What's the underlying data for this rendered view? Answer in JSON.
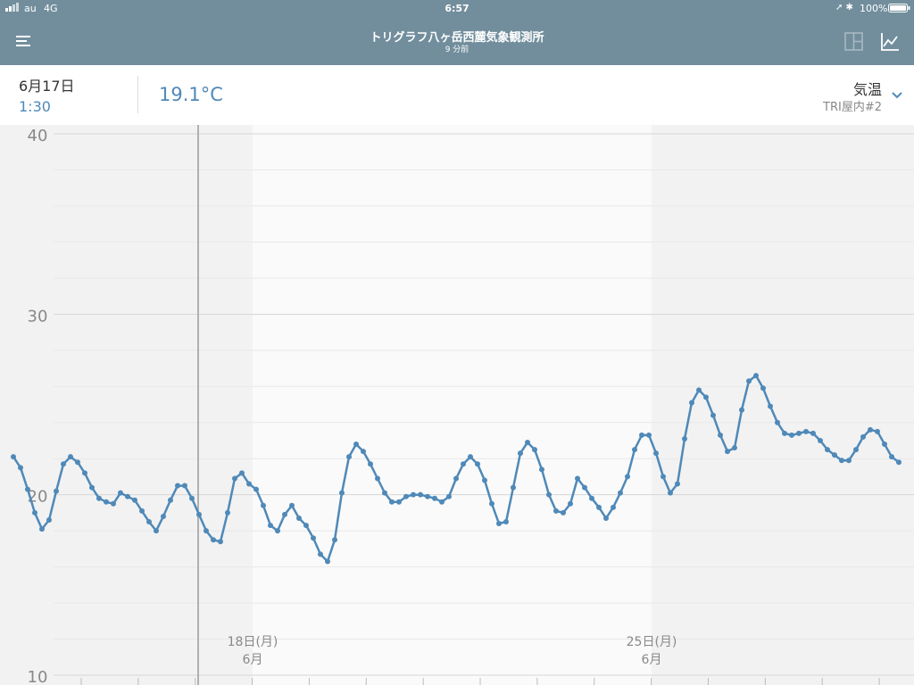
{
  "status_bar": {
    "carrier": "au",
    "network": "4G",
    "time": "6:57",
    "battery": "100%"
  },
  "header": {
    "title": "トリグラフ八ヶ岳西麓気象観測所",
    "updated": "9 分前"
  },
  "info": {
    "date": "6月17日",
    "time": "1:30",
    "reading": "19.1°C",
    "sensor": "TRI屋内#2"
  },
  "chart_data": {
    "type": "line",
    "series": [
      {
        "name": "気温",
        "color": "#4f89b8",
        "values": [
          22.1,
          21.5,
          20.3,
          19.0,
          18.1,
          18.6,
          20.2,
          21.7,
          22.1,
          21.8,
          21.2,
          20.4,
          19.8,
          19.6,
          19.5,
          20.1,
          19.9,
          19.7,
          19.1,
          18.5,
          18.0,
          18.8,
          19.7,
          20.5,
          20.5,
          19.8,
          18.9,
          18.0,
          17.5,
          17.4,
          19.0,
          20.9,
          21.2,
          20.6,
          20.3,
          19.4,
          18.3,
          18.0,
          18.9,
          19.4,
          18.7,
          18.3,
          17.6,
          16.7,
          16.3,
          17.5,
          20.1,
          22.1,
          22.8,
          22.4,
          21.7,
          20.9,
          20.1,
          19.6,
          19.6,
          19.9,
          20.0,
          20.0,
          19.9,
          19.8,
          19.6,
          19.9,
          20.9,
          21.7,
          22.1,
          21.7,
          20.8,
          19.5,
          18.4,
          18.5,
          20.4,
          22.3,
          22.9,
          22.5,
          21.4,
          20.0,
          19.1,
          19.0,
          19.5,
          20.9,
          20.4,
          19.8,
          19.3,
          18.7,
          19.3,
          20.1,
          21.0,
          22.5,
          23.3,
          23.3,
          22.3,
          21.0,
          20.1,
          20.6,
          23.1,
          25.1,
          25.8,
          25.4,
          24.4,
          23.3,
          22.4,
          22.6,
          24.7,
          26.3,
          26.6,
          25.9,
          24.9,
          24.0,
          23.4,
          23.3,
          23.4,
          23.5,
          23.4,
          23.0,
          22.5,
          22.2,
          21.9,
          21.9,
          22.5,
          23.2,
          23.6,
          23.5,
          22.8,
          22.1,
          21.8
        ]
      }
    ],
    "ylim": [
      10,
      40
    ],
    "yticks": [
      10,
      20,
      30,
      40
    ],
    "minor_yticks": [
      12,
      14,
      16,
      18,
      22,
      24,
      26,
      28,
      32,
      34,
      36,
      38
    ],
    "grid": true,
    "x_labels": [
      {
        "day": "18日(月)",
        "month": "6月"
      },
      {
        "day": "25日(月)",
        "month": "6月"
      }
    ]
  }
}
